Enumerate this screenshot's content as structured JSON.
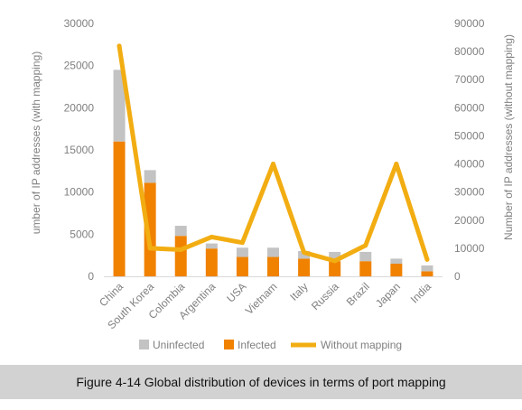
{
  "caption": "Figure 4-14 Global distribution of devices in terms of port mapping",
  "colors": {
    "uninfected": "#c3c3c3",
    "infected": "#f08200",
    "without_mapping": "#f2ad12",
    "axis_text": "#808080"
  },
  "chart_data": {
    "type": "bar",
    "stacked": true,
    "categories": [
      "China",
      "South Korea",
      "Colombia",
      "Argentina",
      "USA",
      "Vietnam",
      "Italy",
      "Russia",
      "Brazil",
      "Japan",
      "India"
    ],
    "series": [
      {
        "name": "Infected",
        "axis": "left",
        "kind": "bar",
        "values": [
          16000,
          11100,
          4800,
          3300,
          2300,
          2300,
          2100,
          1800,
          1800,
          1500,
          600
        ]
      },
      {
        "name": "Uninfected",
        "axis": "left",
        "kind": "bar",
        "values": [
          8500,
          1500,
          1200,
          600,
          1100,
          1100,
          900,
          1100,
          1100,
          600,
          700
        ]
      },
      {
        "name": "Without mapping",
        "axis": "right",
        "kind": "line",
        "values": [
          82000,
          10000,
          9500,
          14000,
          12000,
          40000,
          8500,
          5500,
          11000,
          40000,
          6000
        ]
      }
    ],
    "legend": [
      "Uninfected",
      "Infected",
      "Without mapping"
    ],
    "ylabel_left": "umber of IP addresses (with mapping)",
    "ylabel_right": "Number of IP addresses (without mapping)",
    "ylim_left": [
      0,
      30000
    ],
    "ylim_right": [
      0,
      90000
    ],
    "yticks_left": [
      "0",
      "5000",
      "10000",
      "15000",
      "20000",
      "25000",
      "30000"
    ],
    "yticks_right": [
      "0",
      "10000",
      "20000",
      "30000",
      "40000",
      "50000",
      "60000",
      "70000",
      "80000",
      "90000"
    ],
    "grid": false,
    "legend_position": "bottom"
  }
}
